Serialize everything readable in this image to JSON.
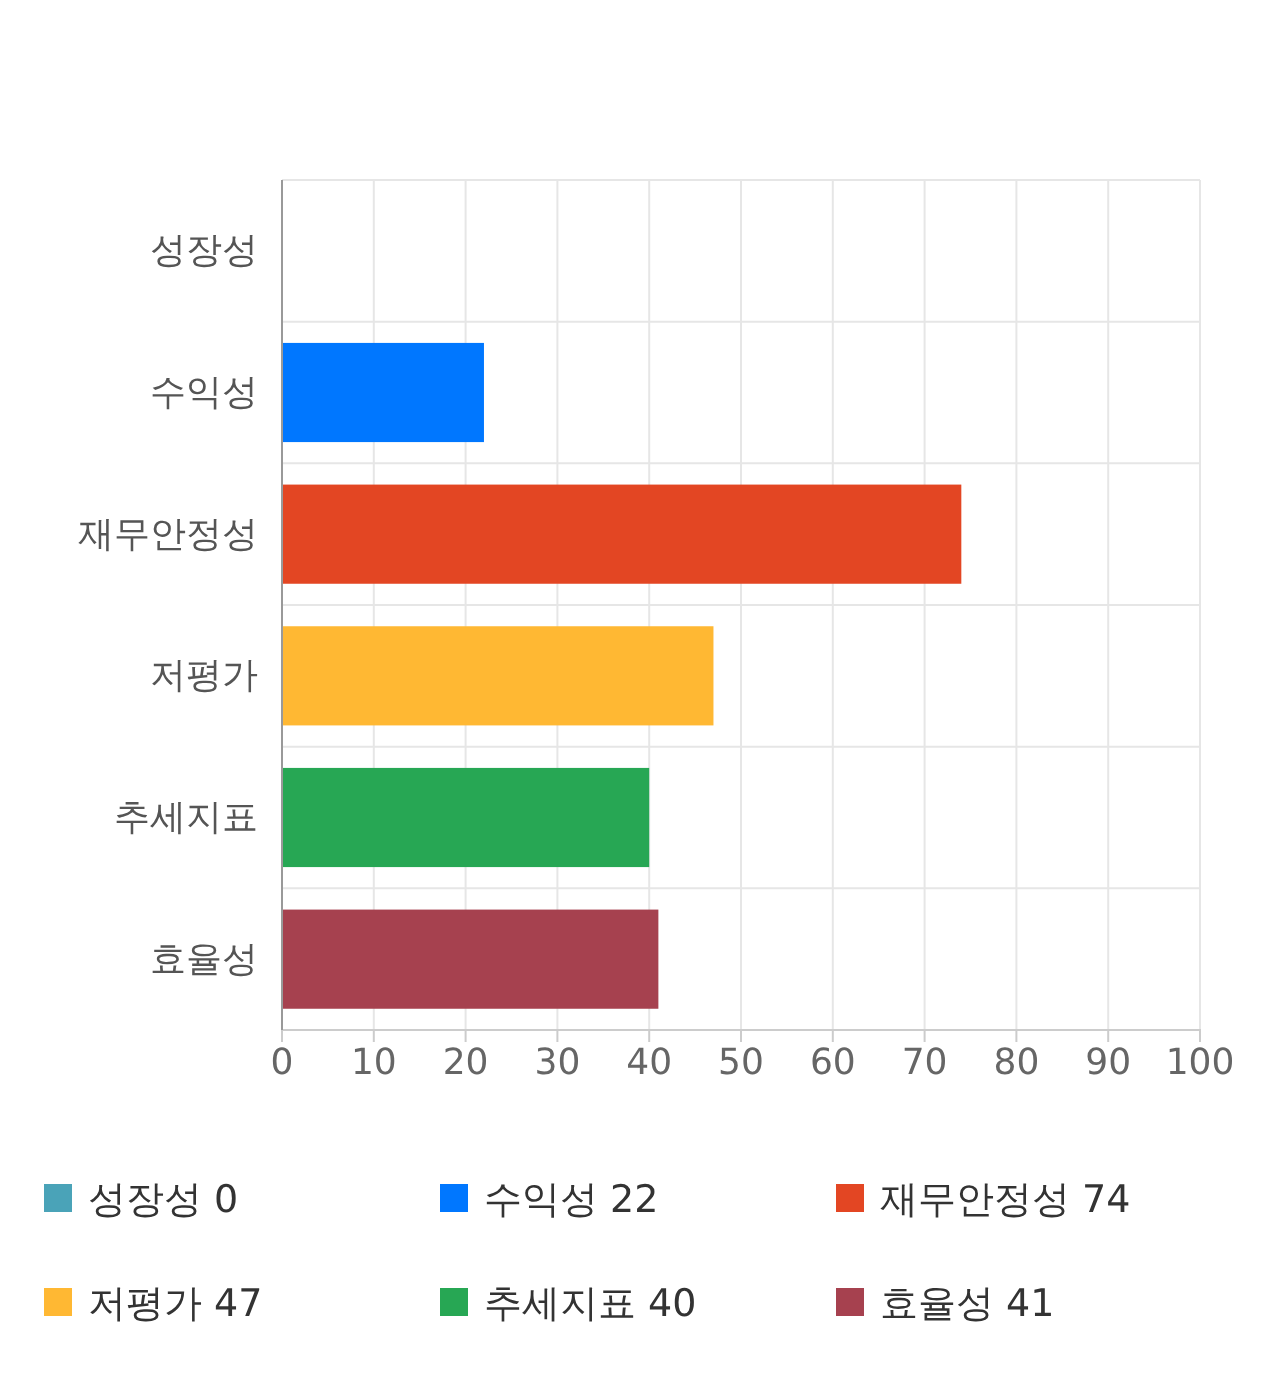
{
  "chart_data": {
    "type": "bar",
    "orientation": "horizontal",
    "stacked": true,
    "categories": [
      "성장성",
      "수익성",
      "재무안정성",
      "저평가",
      "추세지표",
      "효율성"
    ],
    "series": [
      {
        "name": "성장성 0",
        "color": "#4aa3b8",
        "values": [
          0,
          null,
          null,
          null,
          null,
          null
        ]
      },
      {
        "name": "수익성 22",
        "color": "#0077ff",
        "values": [
          null,
          22,
          null,
          null,
          null,
          null
        ]
      },
      {
        "name": "재무안정성 74",
        "color": "#e34623",
        "values": [
          null,
          null,
          74,
          null,
          null,
          null
        ]
      },
      {
        "name": "저평가 47",
        "color": "#ffb833",
        "values": [
          null,
          null,
          null,
          47,
          null,
          null
        ]
      },
      {
        "name": "추세지표 40",
        "color": "#27a754",
        "values": [
          null,
          null,
          null,
          null,
          40,
          null
        ]
      },
      {
        "name": "효율성 41",
        "color": "#a6414f",
        "values": [
          null,
          null,
          null,
          null,
          null,
          41
        ]
      }
    ],
    "xlim": [
      0,
      100
    ],
    "xticks": [
      0,
      10,
      20,
      30,
      40,
      50,
      60,
      70,
      80,
      90,
      100
    ],
    "grid": true,
    "legend": "bottom"
  }
}
